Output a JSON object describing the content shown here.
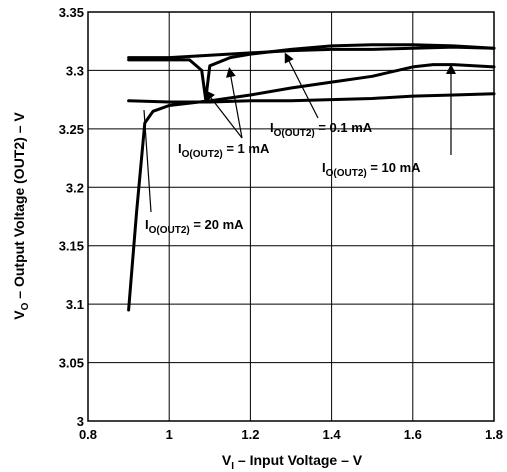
{
  "chart_data": {
    "type": "line",
    "title": "",
    "xlabel": "V",
    "xlabel_sub": "I",
    "xlabel_rest": " – Input Voltage – V",
    "ylabel": "V",
    "ylabel_sub": "O",
    "ylabel_rest": " – Output Voltage (OUT2) – V",
    "xlim": [
      0.8,
      1.8
    ],
    "ylim": [
      3.0,
      3.35
    ],
    "xticks": [
      0.8,
      1.0,
      1.2,
      1.4,
      1.6,
      1.8
    ],
    "xtick_labels": [
      "0.8",
      "1",
      "1.2",
      "1.4",
      "1.6",
      "1.8"
    ],
    "yticks": [
      3.0,
      3.05,
      3.1,
      3.15,
      3.2,
      3.25,
      3.3,
      3.35
    ],
    "ytick_labels": [
      "3",
      "3.05",
      "3.1",
      "3.15",
      "3.2",
      "3.25",
      "3.3",
      "3.35"
    ],
    "grid": true,
    "series": [
      {
        "name": "I(OUT2) = 0.1 mA",
        "label_main": "I",
        "label_sub": "O(OUT2)",
        "label_rest": " = 0.1 mA",
        "x": [
          0.9,
          1.0,
          1.1,
          1.2,
          1.3,
          1.4,
          1.5,
          1.6,
          1.7,
          1.8
        ],
        "y": [
          3.311,
          3.311,
          3.313,
          3.315,
          3.317,
          3.318,
          3.318,
          3.319,
          3.32,
          3.319
        ]
      },
      {
        "name": "I(OUT2) = 1 mA",
        "label_main": "I",
        "label_sub": "O(OUT2)",
        "label_rest": " = 1 mA",
        "x": [
          0.9,
          1.0,
          1.05,
          1.08,
          1.09,
          1.1,
          1.15,
          1.2,
          1.3,
          1.4,
          1.5,
          1.6,
          1.7,
          1.8
        ],
        "y": [
          3.309,
          3.309,
          3.309,
          3.3,
          3.275,
          3.304,
          3.311,
          3.314,
          3.318,
          3.321,
          3.322,
          3.322,
          3.321,
          3.319
        ]
      },
      {
        "name": "I(OUT2) = 10 mA",
        "label_main": "I",
        "label_sub": "O(OUT2)",
        "label_rest": " = 10 mA",
        "x": [
          0.9,
          1.0,
          1.1,
          1.2,
          1.3,
          1.4,
          1.5,
          1.6,
          1.7,
          1.8
        ],
        "y": [
          3.274,
          3.273,
          3.273,
          3.274,
          3.274,
          3.275,
          3.276,
          3.278,
          3.279,
          3.28
        ]
      },
      {
        "name": "I(OUT2) = 20 mA",
        "label_main": "I",
        "label_sub": "O(OUT2)",
        "label_rest": " = 20 mA",
        "x": [
          0.9,
          0.92,
          0.94,
          0.96,
          1.0,
          1.1,
          1.2,
          1.3,
          1.4,
          1.5,
          1.6,
          1.65,
          1.7,
          1.8
        ],
        "y": [
          3.095,
          3.18,
          3.255,
          3.265,
          3.27,
          3.274,
          3.279,
          3.285,
          3.29,
          3.295,
          3.303,
          3.305,
          3.305,
          3.303
        ]
      }
    ]
  }
}
